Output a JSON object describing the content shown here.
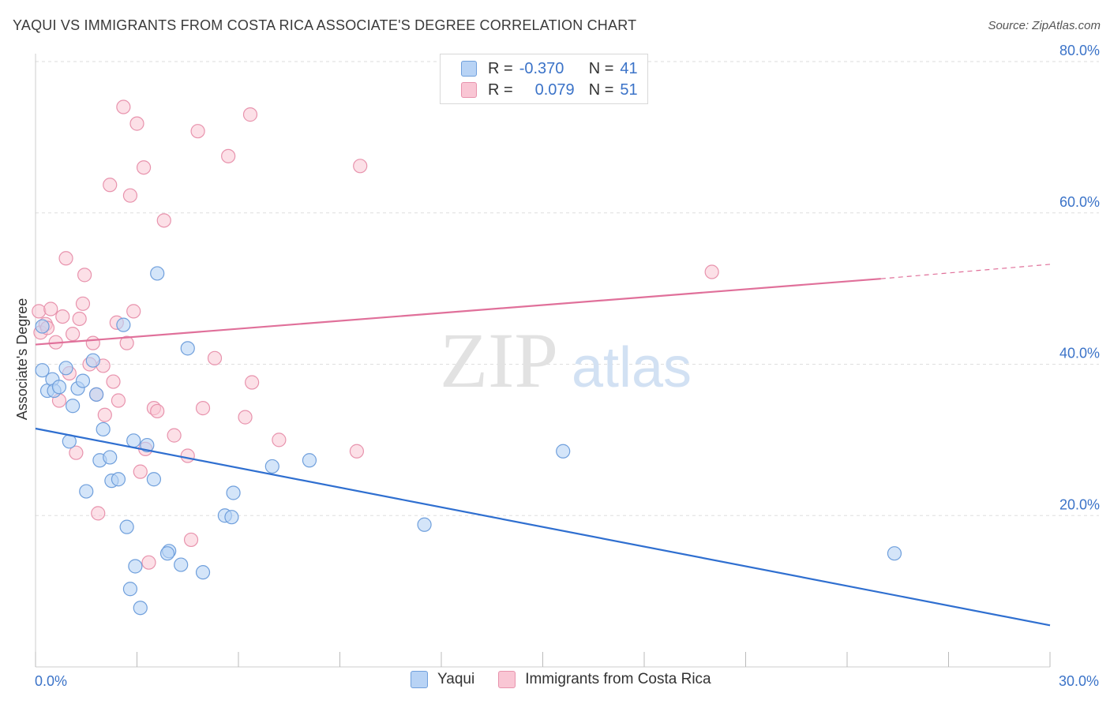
{
  "title": "YAQUI VS IMMIGRANTS FROM COSTA RICA ASSOCIATE'S DEGREE CORRELATION CHART",
  "source": "Source: ZipAtlas.com",
  "watermark": {
    "zip": "ZIP",
    "atlas": "atlas"
  },
  "legend": {
    "r_label": "R =",
    "n_label": "N =",
    "series": [
      {
        "name": "Yaqui",
        "r": "-0.370",
        "n": "41",
        "fill": "#b8d3f5",
        "stroke": "#6f9fdc"
      },
      {
        "name": "Immigrants from Costa Rica",
        "r": "0.079",
        "n": "51",
        "fill": "#f9c6d4",
        "stroke": "#e893ad"
      }
    ]
  },
  "chart_data": {
    "type": "scatter",
    "title": "YAQUI VS IMMIGRANTS FROM COSTA RICA ASSOCIATE'S DEGREE CORRELATION CHART",
    "xlabel": "",
    "ylabel": "Associate's Degree",
    "xlim": [
      0,
      30
    ],
    "ylim": [
      0,
      80
    ],
    "x_tick_labels": [
      {
        "value": 0,
        "label": "0.0%"
      },
      {
        "value": 30,
        "label": "30.0%"
      }
    ],
    "y_tick_labels": [
      {
        "value": 20,
        "label": "20.0%"
      },
      {
        "value": 40,
        "label": "40.0%"
      },
      {
        "value": 60,
        "label": "60.0%"
      },
      {
        "value": 80,
        "label": "80.0%"
      }
    ],
    "grid": true,
    "series": [
      {
        "name": "Yaqui",
        "color": "#6f9fdc",
        "fill": "#b8d3f5",
        "line_color": "#2f6fd0",
        "trend": {
          "x0": 0,
          "y0": 31.5,
          "x1": 30,
          "y1": 5.5
        },
        "points": [
          [
            0.2,
            45.0
          ],
          [
            0.2,
            39.2
          ],
          [
            0.35,
            36.5
          ],
          [
            0.5,
            38.0
          ],
          [
            0.55,
            36.5
          ],
          [
            0.7,
            37.0
          ],
          [
            0.9,
            39.5
          ],
          [
            1.0,
            29.8
          ],
          [
            1.1,
            34.5
          ],
          [
            1.25,
            36.8
          ],
          [
            1.4,
            37.8
          ],
          [
            1.5,
            23.2
          ],
          [
            1.7,
            40.5
          ],
          [
            1.8,
            36.0
          ],
          [
            1.9,
            27.3
          ],
          [
            2.0,
            31.4
          ],
          [
            2.2,
            27.7
          ],
          [
            2.25,
            24.6
          ],
          [
            2.45,
            24.8
          ],
          [
            2.6,
            45.2
          ],
          [
            2.7,
            18.5
          ],
          [
            2.8,
            10.3
          ],
          [
            2.95,
            13.3
          ],
          [
            3.1,
            7.8
          ],
          [
            2.9,
            29.9
          ],
          [
            3.3,
            29.3
          ],
          [
            3.5,
            24.8
          ],
          [
            3.6,
            52.0
          ],
          [
            3.95,
            15.3
          ],
          [
            3.9,
            15.0
          ],
          [
            4.3,
            13.5
          ],
          [
            4.5,
            42.1
          ],
          [
            4.95,
            12.5
          ],
          [
            5.6,
            20.0
          ],
          [
            5.8,
            19.8
          ],
          [
            5.85,
            23.0
          ],
          [
            7.0,
            26.5
          ],
          [
            8.1,
            27.3
          ],
          [
            11.5,
            18.8
          ],
          [
            15.6,
            28.5
          ],
          [
            25.4,
            15.0
          ]
        ]
      },
      {
        "name": "Immigrants from Costa Rica",
        "color": "#e893ad",
        "fill": "#f9c6d4",
        "line_color": "#e0709a",
        "trend": {
          "x0": 0,
          "y0": 42.6,
          "x1": 25.0,
          "y1": 51.3
        },
        "trend_dashed": {
          "x0": 25.0,
          "y0": 51.3,
          "x1": 30,
          "y1": 53.2
        },
        "points": [
          [
            0.1,
            47.0
          ],
          [
            0.15,
            44.2
          ],
          [
            0.3,
            45.3
          ],
          [
            0.35,
            44.8
          ],
          [
            0.45,
            47.3
          ],
          [
            0.6,
            42.9
          ],
          [
            0.7,
            35.2
          ],
          [
            0.8,
            46.3
          ],
          [
            0.9,
            54.0
          ],
          [
            1.0,
            38.8
          ],
          [
            1.1,
            44.0
          ],
          [
            1.2,
            28.3
          ],
          [
            1.3,
            46.0
          ],
          [
            1.4,
            48.0
          ],
          [
            1.45,
            51.8
          ],
          [
            1.6,
            40.0
          ],
          [
            1.7,
            42.8
          ],
          [
            1.8,
            36.0
          ],
          [
            1.85,
            20.3
          ],
          [
            2.0,
            39.8
          ],
          [
            2.05,
            33.3
          ],
          [
            2.2,
            63.7
          ],
          [
            2.3,
            37.7
          ],
          [
            2.4,
            45.5
          ],
          [
            2.45,
            35.2
          ],
          [
            2.6,
            74.0
          ],
          [
            2.7,
            42.8
          ],
          [
            2.8,
            62.3
          ],
          [
            2.9,
            47.0
          ],
          [
            3.0,
            71.8
          ],
          [
            3.1,
            25.8
          ],
          [
            3.2,
            66.0
          ],
          [
            3.25,
            28.8
          ],
          [
            3.35,
            13.8
          ],
          [
            3.5,
            34.2
          ],
          [
            3.6,
            33.8
          ],
          [
            3.8,
            59.0
          ],
          [
            4.1,
            30.6
          ],
          [
            4.5,
            27.9
          ],
          [
            4.6,
            16.8
          ],
          [
            4.8,
            70.8
          ],
          [
            4.95,
            34.2
          ],
          [
            5.3,
            40.8
          ],
          [
            5.7,
            67.5
          ],
          [
            6.2,
            33.0
          ],
          [
            6.35,
            73.0
          ],
          [
            6.4,
            37.6
          ],
          [
            7.2,
            30.0
          ],
          [
            9.5,
            28.5
          ],
          [
            9.6,
            66.2
          ],
          [
            20.0,
            52.2
          ]
        ]
      }
    ]
  }
}
